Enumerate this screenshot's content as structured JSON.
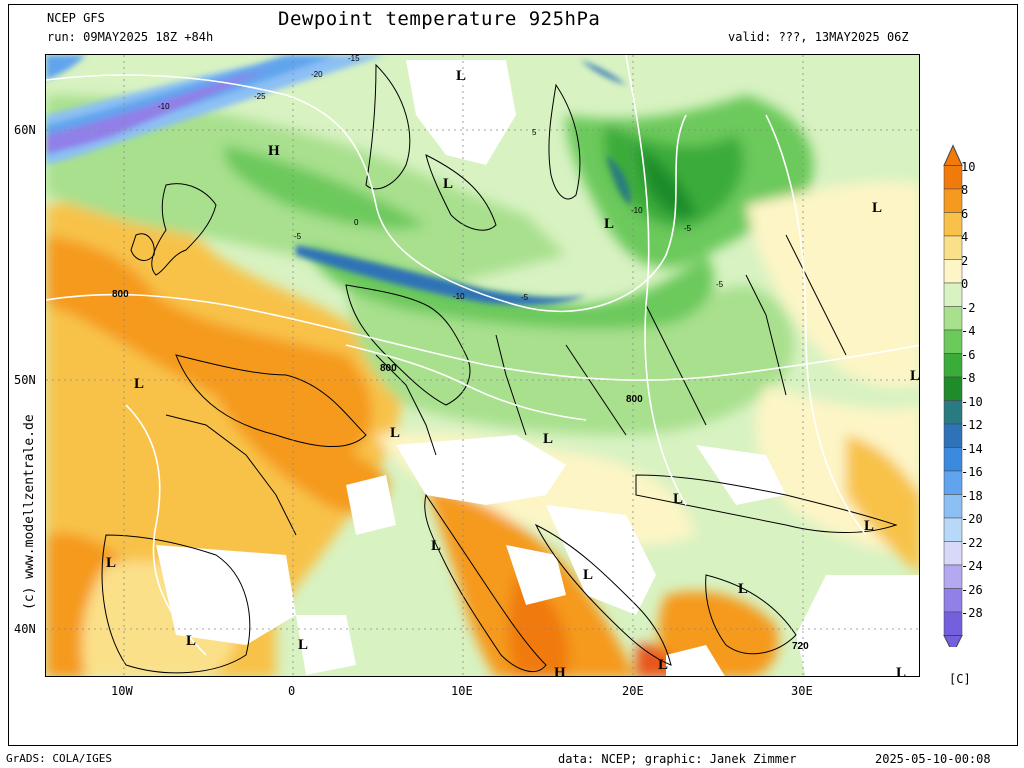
{
  "header": {
    "model": "NCEP GFS",
    "run": "run: 09MAY2025 18Z +84h",
    "title": "Dewpoint temperature 925hPa",
    "valid": "valid: ???, 13MAY2025 06Z"
  },
  "axes": {
    "lat_labels": [
      "60N",
      "50N",
      "40N"
    ],
    "lon_labels": [
      "10W",
      "0",
      "10E",
      "20E",
      "30E"
    ]
  },
  "colorbar": {
    "unit": "[C]",
    "labels": [
      "10",
      "8",
      "6",
      "4",
      "2",
      "0",
      "-2",
      "-4",
      "-6",
      "-8",
      "-10",
      "-12",
      "-14",
      "-16",
      "-18",
      "-20",
      "-22",
      "-24",
      "-26",
      "-28"
    ],
    "colors": [
      "#f07a0a",
      "#f59a1e",
      "#f8c24a",
      "#fbe08a",
      "#fdf5c6",
      "#d8f2c2",
      "#a8e08e",
      "#6cc95c",
      "#3aac3a",
      "#1e8c2a",
      "#2a7a82",
      "#2e72b8",
      "#3a8ae0",
      "#60a4ee",
      "#8cc0f4",
      "#b8d8f8",
      "#d8d8f8",
      "#b4a8f0",
      "#9080e8",
      "#7460dc"
    ]
  },
  "map": {
    "pressure_labels": [
      "800",
      "800",
      "800",
      "720"
    ],
    "contour_labels": [
      "-10",
      "-25",
      "-20",
      "-15",
      "-5",
      "-10",
      "-5",
      "-10",
      "-5",
      "-5",
      "5",
      "0"
    ],
    "low_marker": "L",
    "high_marker": "H"
  },
  "watermark": "(c) www.modellzentrale.de",
  "footer": {
    "left": "GrADS: COLA/IGES",
    "credits": "data: NCEP; graphic: Janek Zimmer",
    "timestamp": "2025-05-10-00:08"
  }
}
